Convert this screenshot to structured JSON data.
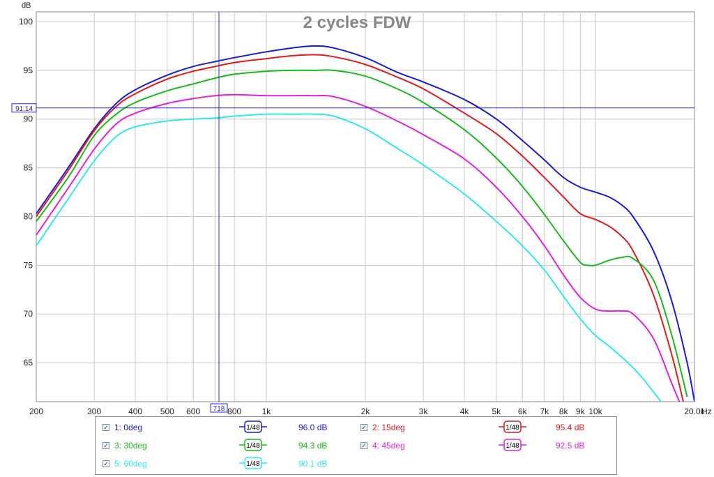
{
  "chart_data": {
    "type": "line",
    "title": "2 cycles FDW",
    "ylabel": "dB",
    "xunit": "Hz",
    "xscale": "log",
    "xlim": [
      200,
      20000
    ],
    "ylim": [
      61,
      101
    ],
    "grid": true,
    "xticks": [
      {
        "v": 200,
        "label": "200"
      },
      {
        "v": 300,
        "label": "300"
      },
      {
        "v": 400,
        "label": "400"
      },
      {
        "v": 500,
        "label": "500"
      },
      {
        "v": 600,
        "label": "600"
      },
      {
        "v": 800,
        "label": "800"
      },
      {
        "v": 1000,
        "label": "1k"
      },
      {
        "v": 2000,
        "label": "2k"
      },
      {
        "v": 3000,
        "label": "3k"
      },
      {
        "v": 4000,
        "label": "4k"
      },
      {
        "v": 5000,
        "label": "5k"
      },
      {
        "v": 6000,
        "label": "6k"
      },
      {
        "v": 7000,
        "label": "7k"
      },
      {
        "v": 8000,
        "label": "8k"
      },
      {
        "v": 9000,
        "label": "9k"
      },
      {
        "v": 10000,
        "label": "10k"
      },
      {
        "v": 20000,
        "label": "20.0k"
      }
    ],
    "xminor": [
      700
    ],
    "yticks": [
      65,
      70,
      75,
      80,
      85,
      90,
      95,
      100
    ],
    "cursor": {
      "x": 718,
      "x_label": "718",
      "y": 91.14,
      "y_label": "91.14",
      "color": "#2a2ad6"
    },
    "series": [
      {
        "name": "1: 0deg",
        "color": "#1a1ad8",
        "value_label": "96.0 dB",
        "x": [
          200,
          250,
          300,
          350,
          400,
          500,
          600,
          700,
          800,
          1000,
          1200,
          1400,
          1600,
          2000,
          2500,
          3000,
          4000,
          5000,
          6000,
          7000,
          8000,
          9000,
          10000,
          11000,
          12000,
          13000,
          15000,
          17000,
          19000,
          20000
        ],
        "y": [
          80.3,
          85.0,
          89.0,
          91.6,
          93.0,
          94.5,
          95.4,
          95.9,
          96.3,
          96.9,
          97.3,
          97.5,
          97.3,
          96.3,
          94.8,
          93.8,
          92.0,
          90.0,
          87.8,
          85.8,
          84.0,
          83.0,
          82.5,
          82.0,
          81.2,
          80.0,
          76.5,
          71.5,
          65.0,
          61.0
        ]
      },
      {
        "name": "2: 15deg",
        "color": "#e01a1a",
        "value_label": "95.4 dB",
        "x": [
          200,
          250,
          300,
          350,
          400,
          500,
          600,
          700,
          800,
          1000,
          1200,
          1400,
          1600,
          2000,
          2500,
          3000,
          4000,
          5000,
          6000,
          7000,
          8000,
          9000,
          10000,
          11000,
          12000,
          13000,
          15000,
          17000,
          18500
        ],
        "y": [
          80.0,
          84.7,
          88.8,
          91.3,
          92.6,
          94.1,
          94.9,
          95.4,
          95.8,
          96.2,
          96.5,
          96.6,
          96.4,
          95.6,
          94.3,
          93.1,
          90.6,
          88.5,
          86.2,
          84.0,
          82.0,
          80.3,
          79.7,
          79.0,
          78.0,
          76.5,
          72.0,
          66.0,
          61.0
        ]
      },
      {
        "name": "3: 30deg",
        "color": "#1ab81a",
        "value_label": "94.3 dB",
        "x": [
          200,
          250,
          300,
          350,
          400,
          500,
          600,
          700,
          800,
          1000,
          1200,
          1400,
          1600,
          2000,
          2500,
          3000,
          4000,
          5000,
          6000,
          7000,
          8000,
          9000,
          9500,
          10000,
          11000,
          12000,
          13000,
          15000,
          17000,
          19000
        ],
        "y": [
          79.5,
          84.0,
          88.3,
          90.5,
          91.7,
          92.9,
          93.6,
          94.2,
          94.6,
          94.9,
          95.0,
          95.0,
          95.0,
          94.4,
          93.1,
          91.7,
          88.9,
          86.0,
          83.1,
          80.2,
          77.5,
          75.3,
          75.0,
          75.0,
          75.5,
          75.8,
          75.7,
          73.5,
          68.0,
          61.5
        ]
      },
      {
        "name": "4: 45deg",
        "color": "#e020e0",
        "value_label": "92.5 dB",
        "x": [
          200,
          250,
          300,
          350,
          400,
          500,
          600,
          700,
          800,
          1000,
          1200,
          1400,
          1600,
          2000,
          2500,
          3000,
          4000,
          5000,
          6000,
          7000,
          8000,
          9000,
          10000,
          11000,
          12000,
          13000,
          15000,
          17000,
          18000
        ],
        "y": [
          78.1,
          82.9,
          86.9,
          89.5,
          90.6,
          91.6,
          92.1,
          92.4,
          92.5,
          92.4,
          92.4,
          92.4,
          92.3,
          91.3,
          89.8,
          88.4,
          85.9,
          83.0,
          80.0,
          77.0,
          74.0,
          71.7,
          70.5,
          70.3,
          70.3,
          70.0,
          67.5,
          63.0,
          61.0
        ]
      },
      {
        "name": "5: 60deg",
        "color": "#30e8e8",
        "value_label": "90.1 dB",
        "x": [
          200,
          250,
          300,
          350,
          400,
          500,
          600,
          700,
          800,
          1000,
          1200,
          1400,
          1600,
          2000,
          2500,
          3000,
          4000,
          5000,
          6000,
          7000,
          8000,
          9000,
          10000,
          11000,
          12000,
          13000,
          14000,
          15000,
          16000
        ],
        "y": [
          77.0,
          81.8,
          85.7,
          88.2,
          89.2,
          89.8,
          90.0,
          90.1,
          90.3,
          90.5,
          90.5,
          90.5,
          90.3,
          89.0,
          87.0,
          85.3,
          82.3,
          79.5,
          77.0,
          74.5,
          71.8,
          69.5,
          67.8,
          66.7,
          65.6,
          64.5,
          63.3,
          62.0,
          60.8
        ]
      }
    ]
  },
  "legend": {
    "smoothing_label": "1/48",
    "items": [
      {
        "check": "✓",
        "name": "1: 0deg",
        "value": "96.0 dB",
        "color": "#1a1ad8"
      },
      {
        "check": "✓",
        "name": "2: 15deg",
        "value": "95.4 dB",
        "color": "#e01a1a"
      },
      {
        "check": "✓",
        "name": "3: 30deg",
        "value": "94.3 dB",
        "color": "#1ab81a"
      },
      {
        "check": "✓",
        "name": "4: 45deg",
        "value": "92.5 dB",
        "color": "#e020e0"
      },
      {
        "check": "✓",
        "name": "5: 60deg",
        "value": "90.1 dB",
        "color": "#30e8e8"
      }
    ]
  }
}
